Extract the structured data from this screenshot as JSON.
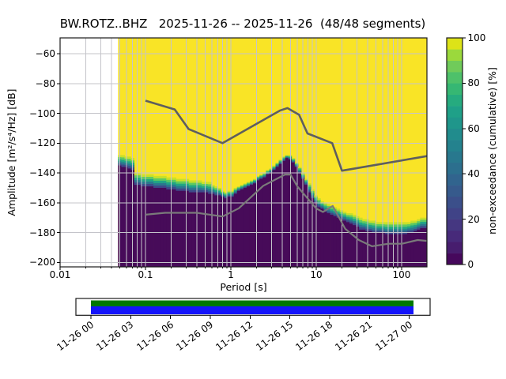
{
  "chart_data": {
    "type": "heatmap",
    "title": "BW.ROTZ..BHZ   2025-11-26 -- 2025-11-26  (48/48 segments)",
    "station": "BW.ROTZ..BHZ",
    "date_range": "2025-11-26 -- 2025-11-26",
    "segments": "48/48 segments",
    "xlabel": "Period [s]",
    "ylabel": "Amplitude [m²/s⁴/Hz] [dB]",
    "colorbar_label": "non-exceedance (cumulative) [%]",
    "x_scale": "log",
    "grid": true,
    "xlim": [
      0.01,
      198
    ],
    "ylim_db": [
      -203,
      -49.4
    ],
    "x_ticks": [
      0.01,
      0.1,
      1,
      10,
      100
    ],
    "x_tick_labels": [
      "0.01",
      "0.1",
      "1",
      "10",
      "100"
    ],
    "y_ticks": [
      -60,
      -80,
      -100,
      -120,
      -140,
      -160,
      -180,
      -200
    ],
    "y_tick_labels": [
      "−60",
      "−80",
      "−100",
      "−120",
      "−140",
      "−160",
      "−180",
      "−200"
    ],
    "colorbar": {
      "ticks": [
        0,
        20,
        40,
        60,
        80,
        100
      ],
      "tick_labels": [
        "0",
        "20",
        "40",
        "60",
        "80",
        "100"
      ],
      "colors_bottom_to_top": [
        "#46085c",
        "#471d6e",
        "#472a7a",
        "#453781",
        "#404387",
        "#3b4f8a",
        "#365a8c",
        "#31648e",
        "#2c6f8e",
        "#28788e",
        "#24828e",
        "#218c8d",
        "#1f968b",
        "#1fa088",
        "#26ab7f",
        "#36b773",
        "#4ec16a",
        "#70cb5a",
        "#9bd93c",
        "#dde318"
      ]
    },
    "colors": {
      "fill_100pct": "#f9e426",
      "fill_0pct": "#470b59",
      "grid": "#c4c4ca",
      "nhnm_line": "#5e5e5e",
      "nlnm_line": "#7a7a7a",
      "frame": "#1a1a1a"
    },
    "psd_envelope": {
      "note": "cumulative non-exceedance distribution: yellow above top_db (100%), purple below bottom_db (0%), viridis transition between",
      "data_period_range": [
        0.0478,
        198
      ],
      "period_step_octaves": 0.125,
      "period_s": [
        0.048,
        0.06,
        0.072,
        0.0735,
        0.1,
        0.155,
        0.25,
        0.4,
        0.55,
        0.7,
        0.85,
        1.05,
        1.2,
        1.5,
        2.0,
        2.5,
        3.0,
        3.5,
        4.0,
        4.6,
        5.2,
        6.0,
        7.0,
        8.0,
        9.0,
        10,
        12,
        15,
        22,
        33,
        50,
        80,
        120,
        160,
        198
      ],
      "top_db": [
        -127.5,
        -129,
        -130,
        -140,
        -141,
        -142,
        -144,
        -145,
        -146,
        -149.5,
        -153,
        -151.5,
        -149,
        -146.5,
        -143,
        -139.5,
        -136.5,
        -133,
        -130,
        -127.5,
        -129,
        -133.5,
        -140,
        -146,
        -151,
        -156,
        -159.5,
        -162,
        -166,
        -170,
        -172.5,
        -173.5,
        -173,
        -171,
        -169.5
      ],
      "bottom_db": [
        -135,
        -136.5,
        -138,
        -147.5,
        -149,
        -150,
        -152,
        -153,
        -153.5,
        -155,
        -157,
        -155.5,
        -152.5,
        -150,
        -146,
        -142.5,
        -139.5,
        -136,
        -132.5,
        -129.5,
        -131.5,
        -137,
        -144.5,
        -151,
        -156.5,
        -161,
        -165,
        -168,
        -172.5,
        -177.5,
        -180,
        -181,
        -180.5,
        -178,
        -176.5
      ],
      "band_colors_top_to_bottom": [
        "#c8e02a",
        "#5ec962",
        "#21a585",
        "#2a788e",
        "#3e4989"
      ]
    },
    "noise_models": {
      "nhnm_period_db": [
        [
          0.1,
          -91.5
        ],
        [
          0.22,
          -97.4
        ],
        [
          0.32,
          -110.5
        ],
        [
          0.8,
          -120.0
        ],
        [
          3.8,
          -98.0
        ],
        [
          4.6,
          -96.5
        ],
        [
          6.3,
          -101.0
        ],
        [
          7.9,
          -113.5
        ],
        [
          15.4,
          -120.0
        ],
        [
          20.0,
          -138.5
        ],
        [
          198,
          -128.7
        ]
      ],
      "nlnm_period_db": [
        [
          0.1,
          -168.0
        ],
        [
          0.17,
          -166.7
        ],
        [
          0.4,
          -166.7
        ],
        [
          0.8,
          -169.2
        ],
        [
          1.24,
          -163.7
        ],
        [
          2.4,
          -148.6
        ],
        [
          4.3,
          -141.1
        ],
        [
          5.0,
          -141.1
        ],
        [
          6.0,
          -149.0
        ],
        [
          10.0,
          -163.8
        ],
        [
          12.0,
          -166.2
        ],
        [
          15.6,
          -162.1
        ],
        [
          21.9,
          -177.5
        ],
        [
          31.6,
          -185.0
        ],
        [
          45.0,
          -189.2
        ],
        [
          70.0,
          -187.5
        ],
        [
          101.0,
          -187.5
        ],
        [
          154.0,
          -185.0
        ],
        [
          198,
          -185.6
        ]
      ]
    },
    "timeline": {
      "tick_labels": [
        "11-26 00",
        "11-26 03",
        "11-26 06",
        "11-26 09",
        "11-26 12",
        "11-26 15",
        "11-26 18",
        "11-26 21",
        "11-27 00"
      ],
      "green_color": "#007800",
      "blue_color": "#1414fa",
      "box_color": "#ffffff"
    }
  }
}
